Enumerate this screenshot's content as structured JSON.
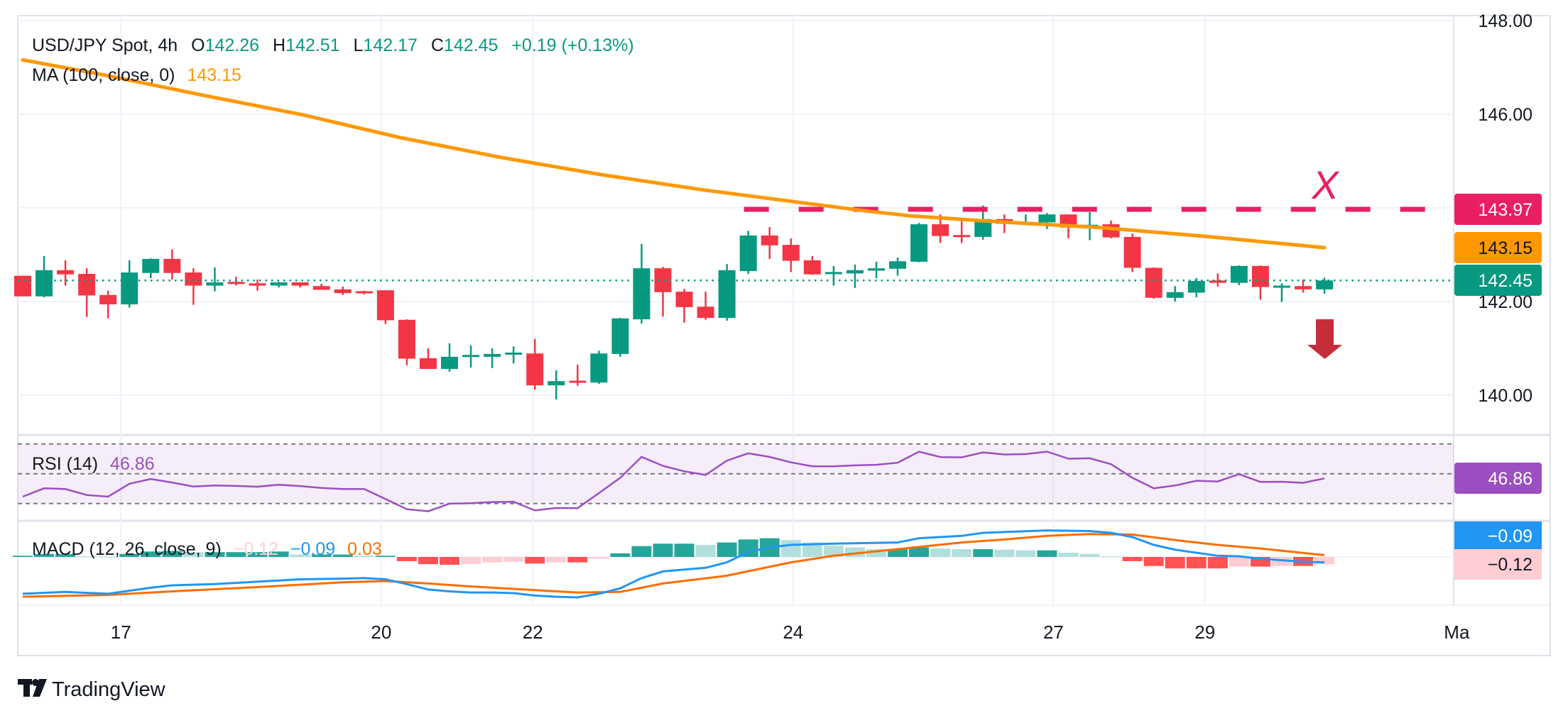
{
  "header": {
    "symbol": "USD/JPY Spot, 4h",
    "o_label": "O",
    "o": "142.26",
    "h_label": "H",
    "h": "142.51",
    "l_label": "L",
    "l": "142.17",
    "c_label": "C",
    "c": "142.45",
    "change": "+0.19 (+0.13%)"
  },
  "ma_legend": {
    "label": "MA (100, close, 0)",
    "value": "143.15"
  },
  "rsi_legend": {
    "label": "RSI (14)",
    "value": "46.86"
  },
  "macd_legend": {
    "label": "MACD (12, 26, close, 9)",
    "hist": "−0.12",
    "macd": "−0.09",
    "signal": "0.03"
  },
  "axis_labels": {
    "resistance": "143.97",
    "ma": "143.15",
    "last": "142.45",
    "rsi": "46.86",
    "macd": "−0.09",
    "hist": "−0.12"
  },
  "annotation": {
    "marker": "X",
    "direction": "down-arrow-icon"
  },
  "logo": {
    "text": "TradingView"
  },
  "colors": {
    "up": "#089981",
    "down": "#F23645",
    "ma": "#FF9800",
    "resistance": "#E91E63",
    "rsi": "#9C4FC0",
    "macd": "#2196F3",
    "signal": "#FF6D00",
    "hist_up_strong": "#26A69A",
    "hist_up_weak": "#B2DFDB",
    "hist_down_strong": "#FF5252",
    "hist_down_weak": "#FFCDD2",
    "arrow": "#C62D3A"
  },
  "chart_data": {
    "type": "candlestick",
    "title": "USD/JPY Spot, 4h",
    "ylim": [
      139.0,
      148.4
    ],
    "y_ticks": [
      {
        "value": 148,
        "label": "148.00"
      },
      {
        "value": 146,
        "label": "146.00"
      },
      {
        "value": 142,
        "label": "142.00"
      },
      {
        "value": 140,
        "label": "140.00"
      }
    ],
    "y_grid": [
      140,
      142,
      144,
      146,
      148
    ],
    "x_ticks": [
      {
        "label": "17",
        "at": 4.6
      },
      {
        "label": "20",
        "at": 16.8
      },
      {
        "label": "22",
        "at": 23.9
      },
      {
        "label": "24",
        "at": 36.1
      },
      {
        "label": "27",
        "at": 48.3
      },
      {
        "label": "29",
        "at": 55.4
      },
      {
        "label": "Ma",
        "at": 67.2
      }
    ],
    "candles_ohlc": [
      [
        142.55,
        142.55,
        142.11,
        142.11
      ],
      [
        142.11,
        142.97,
        142.09,
        142.67
      ],
      [
        142.67,
        142.88,
        142.34,
        142.58
      ],
      [
        142.59,
        142.71,
        141.67,
        142.13
      ],
      [
        142.14,
        142.23,
        141.64,
        141.94
      ],
      [
        141.94,
        142.88,
        141.87,
        142.62
      ],
      [
        142.61,
        142.92,
        142.5,
        142.91
      ],
      [
        142.91,
        143.11,
        142.47,
        142.61
      ],
      [
        142.62,
        142.71,
        141.93,
        142.34
      ],
      [
        142.34,
        142.73,
        142.22,
        142.41
      ],
      [
        142.42,
        142.53,
        142.34,
        142.39
      ],
      [
        142.39,
        142.47,
        142.23,
        142.34
      ],
      [
        142.34,
        142.42,
        142.3,
        142.41
      ],
      [
        142.41,
        142.41,
        142.3,
        142.34
      ],
      [
        142.33,
        142.38,
        142.25,
        142.25
      ],
      [
        142.26,
        142.32,
        142.14,
        142.18
      ],
      [
        142.22,
        142.23,
        142.15,
        142.18
      ],
      [
        142.24,
        142.24,
        141.52,
        141.6
      ],
      [
        141.61,
        141.62,
        140.64,
        140.78
      ],
      [
        140.79,
        141.0,
        140.56,
        140.56
      ],
      [
        140.56,
        141.11,
        140.5,
        140.82
      ],
      [
        140.82,
        141.06,
        140.59,
        140.86
      ],
      [
        140.82,
        141.0,
        140.58,
        140.88
      ],
      [
        140.88,
        141.04,
        140.68,
        140.91
      ],
      [
        140.89,
        141.2,
        140.12,
        140.21
      ],
      [
        140.21,
        140.53,
        139.91,
        140.3
      ],
      [
        140.31,
        140.65,
        140.2,
        140.29
      ],
      [
        140.27,
        140.95,
        140.24,
        140.89
      ],
      [
        140.88,
        141.65,
        140.82,
        141.64
      ],
      [
        141.62,
        143.23,
        141.53,
        142.71
      ],
      [
        142.71,
        142.74,
        141.68,
        142.2
      ],
      [
        142.21,
        142.27,
        141.55,
        141.88
      ],
      [
        141.89,
        142.21,
        141.61,
        141.65
      ],
      [
        141.65,
        142.8,
        141.59,
        142.67
      ],
      [
        142.65,
        143.51,
        142.59,
        143.41
      ],
      [
        143.41,
        143.59,
        142.91,
        143.2
      ],
      [
        143.21,
        143.35,
        142.63,
        142.87
      ],
      [
        142.88,
        142.97,
        142.57,
        142.58
      ],
      [
        142.6,
        142.76,
        142.34,
        142.63
      ],
      [
        142.6,
        142.79,
        142.29,
        142.67
      ],
      [
        142.66,
        142.85,
        142.5,
        142.71
      ],
      [
        142.7,
        142.94,
        142.55,
        142.86
      ],
      [
        142.85,
        143.68,
        142.84,
        143.65
      ],
      [
        143.65,
        143.86,
        143.25,
        143.4
      ],
      [
        143.42,
        143.74,
        143.25,
        143.4
      ],
      [
        143.38,
        144.05,
        143.32,
        143.76
      ],
      [
        143.76,
        143.86,
        143.46,
        143.66
      ],
      [
        143.66,
        143.86,
        143.64,
        143.7
      ],
      [
        143.69,
        143.89,
        143.55,
        143.86
      ],
      [
        143.86,
        143.86,
        143.35,
        143.58
      ],
      [
        143.58,
        143.91,
        143.31,
        143.64
      ],
      [
        143.65,
        143.73,
        143.35,
        143.37
      ],
      [
        143.38,
        143.45,
        142.63,
        142.72
      ],
      [
        142.72,
        142.73,
        142.06,
        142.08
      ],
      [
        142.08,
        142.33,
        142.0,
        142.2
      ],
      [
        142.19,
        142.5,
        142.09,
        142.44
      ],
      [
        142.45,
        142.6,
        142.32,
        142.4
      ],
      [
        142.4,
        142.77,
        142.35,
        142.76
      ],
      [
        142.76,
        142.77,
        142.04,
        142.31
      ],
      [
        142.32,
        142.39,
        141.99,
        142.34
      ],
      [
        142.33,
        142.47,
        142.19,
        142.26
      ],
      [
        142.26,
        142.51,
        142.17,
        142.45
      ]
    ],
    "ma_100": [
      [
        0,
        147.16
      ],
      [
        3.8,
        146.84
      ],
      [
        8.4,
        146.41
      ],
      [
        13.1,
        145.99
      ],
      [
        17.7,
        145.5
      ],
      [
        22.5,
        145.07
      ],
      [
        27.1,
        144.71
      ],
      [
        31.8,
        144.39
      ],
      [
        36.5,
        144.11
      ],
      [
        39.8,
        143.92
      ],
      [
        41.6,
        143.83
      ],
      [
        45.8,
        143.7
      ],
      [
        50.5,
        143.58
      ],
      [
        55.2,
        143.4
      ],
      [
        57.1,
        143.32
      ],
      [
        61,
        143.15
      ]
    ],
    "resistance": {
      "value": 143.97,
      "start_index": 33.8
    },
    "marker_index": 61,
    "rsi": {
      "period": 14,
      "levels": [
        70,
        50,
        30
      ],
      "ylim": [
        20,
        75
      ],
      "values": [
        34.6,
        40.2,
        39.7,
        35.7,
        34.6,
        43.3,
        46.5,
        44.1,
        41.4,
        42.1,
        41.8,
        41.3,
        42.6,
        41.7,
        40.5,
        39.7,
        39.7,
        33.0,
        26.2,
        24.8,
        29.9,
        30.2,
        31.0,
        31.2,
        25.4,
        27.0,
        26.9,
        37.0,
        47.3,
        61.3,
        55.3,
        51.6,
        49.2,
        58.8,
        63.7,
        61.3,
        57.6,
        55.0,
        55.0,
        55.6,
        56.0,
        57.4,
        64.8,
        61.2,
        61.0,
        64.3,
        62.9,
        63.2,
        64.8,
        60.1,
        60.4,
        56.4,
        47.3,
        40.2,
        42.1,
        45.3,
        44.8,
        49.7,
        44.5,
        44.6,
        43.9,
        46.86
      ]
    },
    "macd": {
      "histogram": [
        0.02,
        0.05,
        0.05,
        0.01,
        0.005,
        0.05,
        0.09,
        0.1,
        0.08,
        0.08,
        0.08,
        0.08,
        0.09,
        0.04,
        0.04,
        0.04,
        0.02,
        0.02,
        -0.07,
        -0.12,
        -0.13,
        -0.12,
        -0.09,
        -0.08,
        -0.11,
        -0.09,
        -0.09,
        -0.03,
        0.06,
        0.18,
        0.22,
        0.22,
        0.2,
        0.24,
        0.29,
        0.31,
        0.28,
        0.24,
        0.19,
        0.16,
        0.13,
        0.13,
        0.16,
        0.14,
        0.13,
        0.13,
        0.12,
        0.11,
        0.11,
        0.07,
        0.05,
        0.01,
        -0.07,
        -0.15,
        -0.19,
        -0.19,
        -0.19,
        -0.16,
        -0.16,
        -0.15,
        -0.15,
        -0.12
      ],
      "macd_line": [
        [
          0,
          -0.61
        ],
        [
          2,
          -0.58
        ],
        [
          4,
          -0.61
        ],
        [
          5,
          -0.56
        ],
        [
          6,
          -0.51
        ],
        [
          7,
          -0.47
        ],
        [
          9,
          -0.45
        ],
        [
          11,
          -0.41
        ],
        [
          13,
          -0.37
        ],
        [
          15,
          -0.36
        ],
        [
          16,
          -0.35
        ],
        [
          17,
          -0.37
        ],
        [
          18,
          -0.45
        ],
        [
          19,
          -0.54
        ],
        [
          20,
          -0.57
        ],
        [
          21,
          -0.59
        ],
        [
          22,
          -0.59
        ],
        [
          23,
          -0.6
        ],
        [
          24,
          -0.64
        ],
        [
          25,
          -0.66
        ],
        [
          26,
          -0.67
        ],
        [
          27,
          -0.61
        ],
        [
          28,
          -0.52
        ],
        [
          29,
          -0.35
        ],
        [
          30,
          -0.24
        ],
        [
          32,
          -0.18
        ],
        [
          33,
          -0.09
        ],
        [
          34,
          0.08
        ],
        [
          35,
          0.16
        ],
        [
          36,
          0.2
        ],
        [
          38,
          0.22
        ],
        [
          41,
          0.24
        ],
        [
          42,
          0.31
        ],
        [
          44,
          0.35
        ],
        [
          45,
          0.4
        ],
        [
          48,
          0.44
        ],
        [
          50,
          0.43
        ],
        [
          51,
          0.4
        ],
        [
          52,
          0.33
        ],
        [
          53,
          0.2
        ],
        [
          54,
          0.12
        ],
        [
          56,
          0.02
        ],
        [
          57,
          0.01
        ],
        [
          58,
          -0.03
        ],
        [
          60,
          -0.08
        ],
        [
          61,
          -0.09
        ]
      ],
      "signal_line": [
        [
          0,
          -0.66
        ],
        [
          4,
          -0.63
        ],
        [
          7,
          -0.57
        ],
        [
          11,
          -0.5
        ],
        [
          15,
          -0.42
        ],
        [
          17,
          -0.4
        ],
        [
          19,
          -0.44
        ],
        [
          21,
          -0.49
        ],
        [
          23,
          -0.53
        ],
        [
          26,
          -0.59
        ],
        [
          28,
          -0.58
        ],
        [
          30,
          -0.44
        ],
        [
          33,
          -0.31
        ],
        [
          36,
          -0.09
        ],
        [
          38,
          0.02
        ],
        [
          41,
          0.13
        ],
        [
          44,
          0.24
        ],
        [
          46,
          0.29
        ],
        [
          48,
          0.35
        ],
        [
          50,
          0.38
        ],
        [
          52,
          0.37
        ],
        [
          54,
          0.28
        ],
        [
          56,
          0.2
        ],
        [
          58,
          0.14
        ],
        [
          61,
          0.03
        ]
      ]
    }
  }
}
